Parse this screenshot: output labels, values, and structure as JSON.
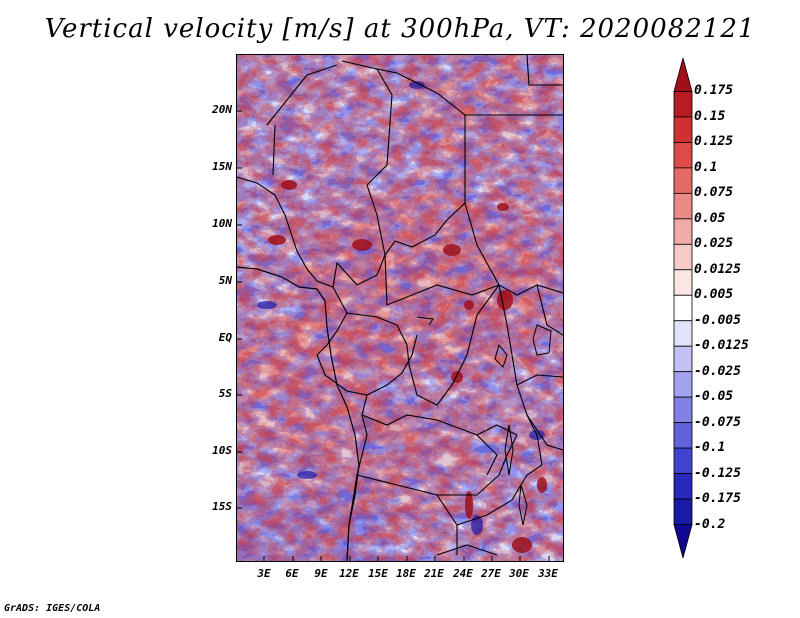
{
  "title": "Vertical velocity [m/s] at 300hPa, VT: 2020082121",
  "footer": "GrADS: IGES/COLA",
  "map": {
    "variable": "Vertical velocity",
    "units": "m/s",
    "level": "300hPa",
    "valid_time": "2020082121",
    "lat_labels": [
      "20N",
      "15N",
      "10N",
      "5N",
      "EQ",
      "5S",
      "10S",
      "15S"
    ],
    "lon_labels": [
      "3E",
      "6E",
      "9E",
      "12E",
      "15E",
      "18E",
      "21E",
      "24E",
      "27E",
      "30E",
      "33E"
    ]
  },
  "colorbar": {
    "levels": [
      "0.175",
      "0.15",
      "0.125",
      "0.1",
      "0.075",
      "0.05",
      "0.025",
      "0.0125",
      "0.005",
      "-0.005",
      "-0.0125",
      "-0.025",
      "-0.05",
      "-0.075",
      "-0.1",
      "-0.125",
      "-0.175",
      "-0.2"
    ],
    "colors": [
      "#a01018",
      "#b81c22",
      "#cf3030",
      "#de4a48",
      "#e56a66",
      "#ec8a86",
      "#f2aaa6",
      "#f7cac8",
      "#fbe6e4",
      "#ffffff",
      "#e2e2fb",
      "#c2c2f4",
      "#a2a2ee",
      "#8282e6",
      "#6262dd",
      "#4242d0",
      "#2828bf",
      "#1a1aa8",
      "#100890"
    ]
  }
}
